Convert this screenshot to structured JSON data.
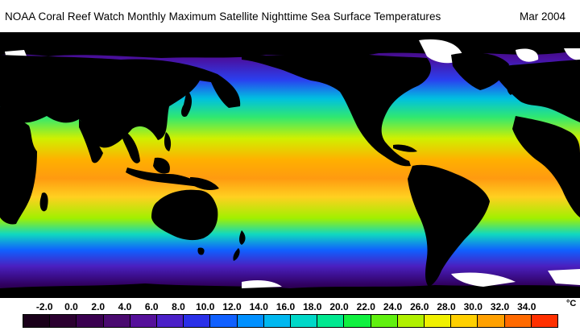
{
  "header": {
    "title": "NOAA Coral Reef Watch Monthly Maximum Satellite Nighttime Sea Surface Temperatures",
    "date": "Mar 2004"
  },
  "map": {
    "description_icon": "world-sst-map",
    "ocean_color_scale_note": "warm tropics, cold polar waters",
    "land_color": "#000000",
    "ice_color": "#ffffff"
  },
  "legend": {
    "unit": "°C",
    "ticks": [
      "-2.0",
      "0.0",
      "2.0",
      "4.0",
      "6.0",
      "8.0",
      "10.0",
      "12.0",
      "14.0",
      "16.0",
      "18.0",
      "20.0",
      "22.0",
      "24.0",
      "26.0",
      "28.0",
      "30.0",
      "32.0",
      "34.0"
    ],
    "colors": [
      "#1a001a",
      "#2b0030",
      "#3a0050",
      "#4a0a70",
      "#55109a",
      "#4b20c8",
      "#2a30e8",
      "#1060ff",
      "#0090ff",
      "#00b8f0",
      "#00d8c8",
      "#00e890",
      "#10f040",
      "#60f010",
      "#b0f000",
      "#f0f000",
      "#ffd000",
      "#ffa000",
      "#ff6a00",
      "#ff3000"
    ]
  }
}
